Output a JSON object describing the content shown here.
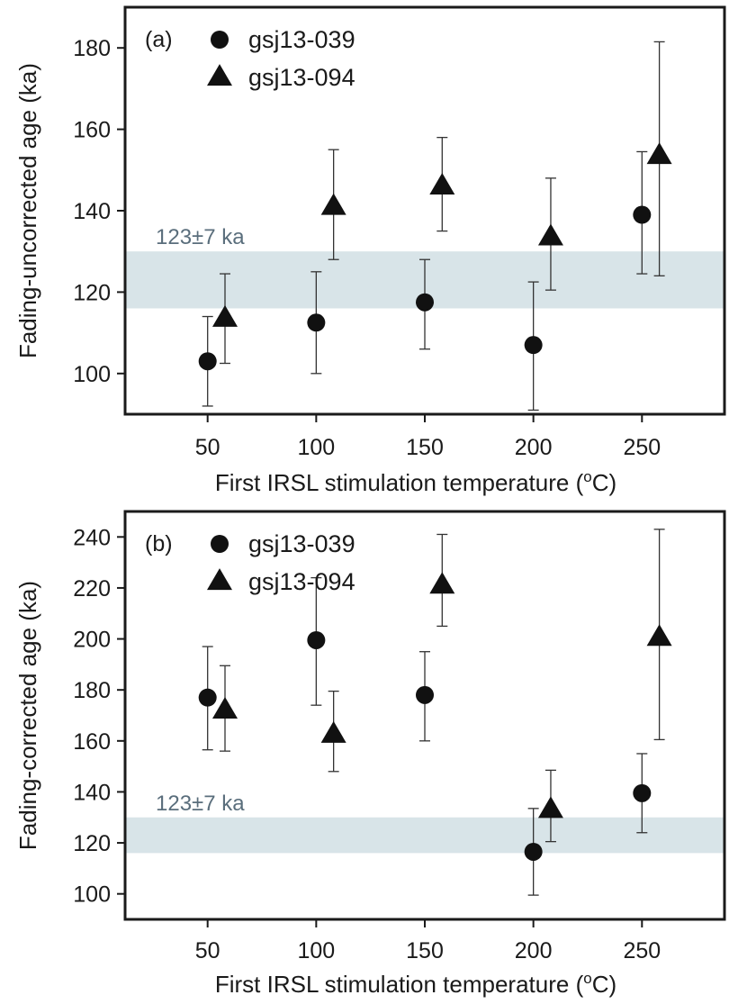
{
  "chart_data": [
    {
      "type": "scatter",
      "panel_label": "(a)",
      "xlabel": "First IRSL stimulation temperature (",
      "xlabel_unit": "o",
      "xlabel_unit_tail": "C)",
      "ylabel": "Fading-uncorrected age (ka)",
      "xlim": [
        12,
        288
      ],
      "ylim": [
        90,
        190
      ],
      "xticks": [
        50,
        100,
        150,
        200,
        250
      ],
      "yticks": [
        100,
        120,
        140,
        160,
        180
      ],
      "band": {
        "low": 116,
        "high": 130,
        "label": "123±7 ka",
        "color": "#d8e4e8",
        "label_color": "#5a6e7c"
      },
      "legend_position": "top-left",
      "series": [
        {
          "name": "gsj13-039",
          "marker": "circle",
          "points": [
            {
              "x": 50,
              "y": 103,
              "lo": 92,
              "hi": 114
            },
            {
              "x": 100,
              "y": 112.5,
              "lo": 100,
              "hi": 125
            },
            {
              "x": 150,
              "y": 117.5,
              "lo": 106,
              "hi": 128
            },
            {
              "x": 200,
              "y": 107,
              "lo": 91,
              "hi": 122.5
            },
            {
              "x": 250,
              "y": 139,
              "lo": 124.5,
              "hi": 154.5
            }
          ]
        },
        {
          "name": "gsj13-094",
          "marker": "triangle",
          "points": [
            {
              "x": 58,
              "y": 113.5,
              "lo": 102.5,
              "hi": 124.5
            },
            {
              "x": 108,
              "y": 141,
              "lo": 128,
              "hi": 155
            },
            {
              "x": 158,
              "y": 146,
              "lo": 135,
              "hi": 158
            },
            {
              "x": 208,
              "y": 133.5,
              "lo": 120.5,
              "hi": 148
            },
            {
              "x": 258,
              "y": 153.5,
              "lo": 124,
              "hi": 181.5
            }
          ]
        }
      ]
    },
    {
      "type": "scatter",
      "panel_label": "(b)",
      "xlabel": "First IRSL stimulation temperature (",
      "xlabel_unit": "o",
      "xlabel_unit_tail": "C)",
      "ylabel": "Fading-corrected age (ka)",
      "xlim": [
        12,
        288
      ],
      "ylim": [
        90,
        250
      ],
      "xticks": [
        50,
        100,
        150,
        200,
        250
      ],
      "yticks": [
        100,
        120,
        140,
        160,
        180,
        200,
        220,
        240
      ],
      "band": {
        "low": 116,
        "high": 130,
        "label": "123±7 ka",
        "color": "#d8e4e8",
        "label_color": "#5a6e7c"
      },
      "legend_position": "top-left",
      "series": [
        {
          "name": "gsj13-039",
          "marker": "circle",
          "points": [
            {
              "x": 50,
              "y": 177,
              "lo": 156.5,
              "hi": 197
            },
            {
              "x": 100,
              "y": 199.5,
              "lo": 174,
              "hi": 224
            },
            {
              "x": 150,
              "y": 178,
              "lo": 160,
              "hi": 195
            },
            {
              "x": 200,
              "y": 116.5,
              "lo": 99.5,
              "hi": 133.5
            },
            {
              "x": 250,
              "y": 139.5,
              "lo": 124,
              "hi": 155
            }
          ]
        },
        {
          "name": "gsj13-094",
          "marker": "triangle",
          "points": [
            {
              "x": 58,
              "y": 172,
              "lo": 156,
              "hi": 189.5
            },
            {
              "x": 108,
              "y": 162.5,
              "lo": 148,
              "hi": 179.5
            },
            {
              "x": 158,
              "y": 221,
              "lo": 205,
              "hi": 241
            },
            {
              "x": 208,
              "y": 133,
              "lo": 120.5,
              "hi": 148.5
            },
            {
              "x": 258,
              "y": 200.5,
              "lo": 160.5,
              "hi": 243
            }
          ]
        }
      ]
    }
  ]
}
